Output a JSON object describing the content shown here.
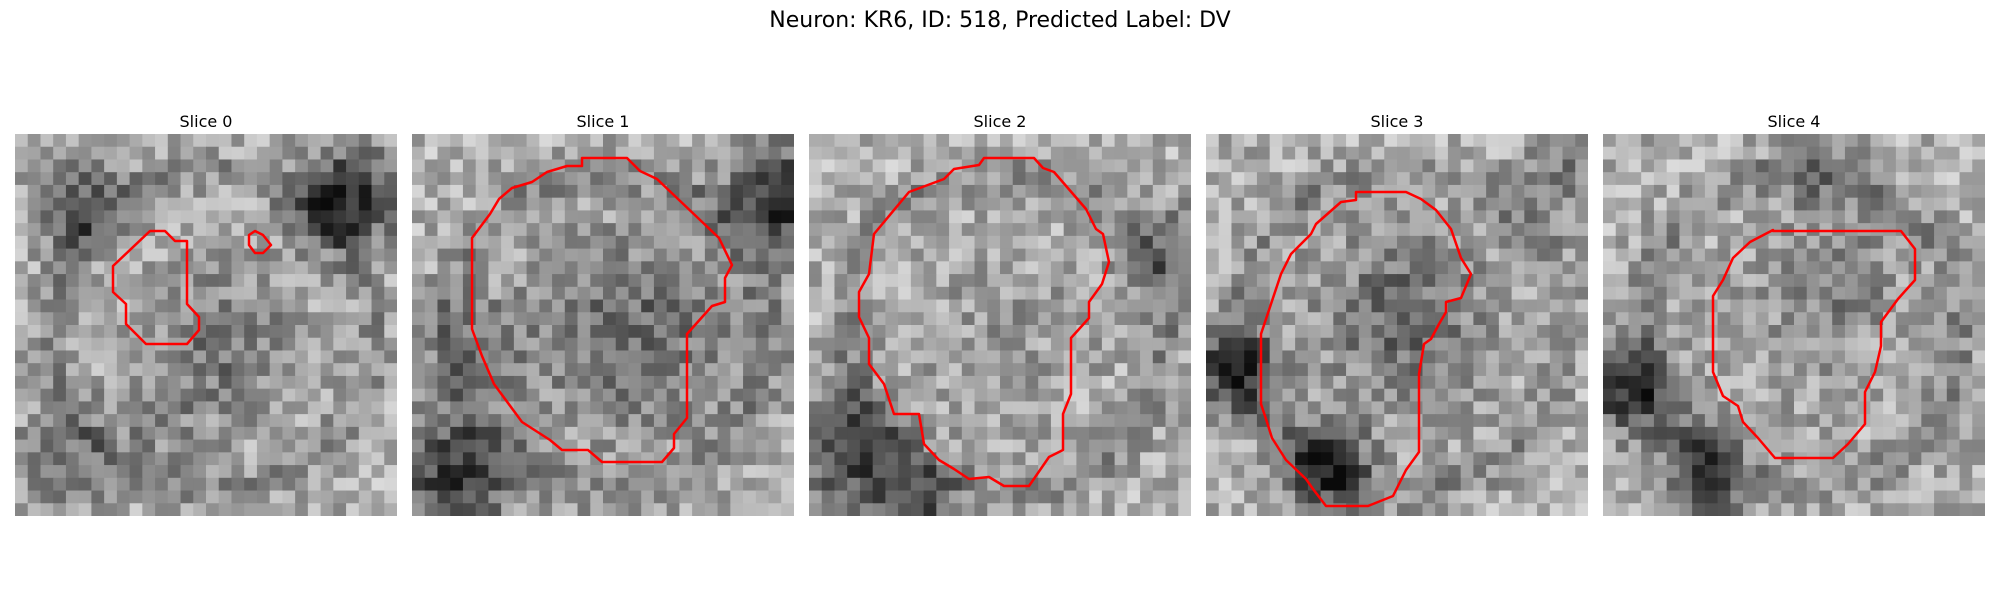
{
  "figure": {
    "title": "Neuron: KR6, ID: 518, Predicted Label: DV"
  },
  "panels": [
    {
      "title": "Slice 0"
    },
    {
      "title": "Slice 1"
    },
    {
      "title": "Slice 2"
    },
    {
      "title": "Slice 3"
    },
    {
      "title": "Slice 4"
    }
  ],
  "colors": {
    "contour": "#ff0000",
    "background": "#ffffff"
  }
}
